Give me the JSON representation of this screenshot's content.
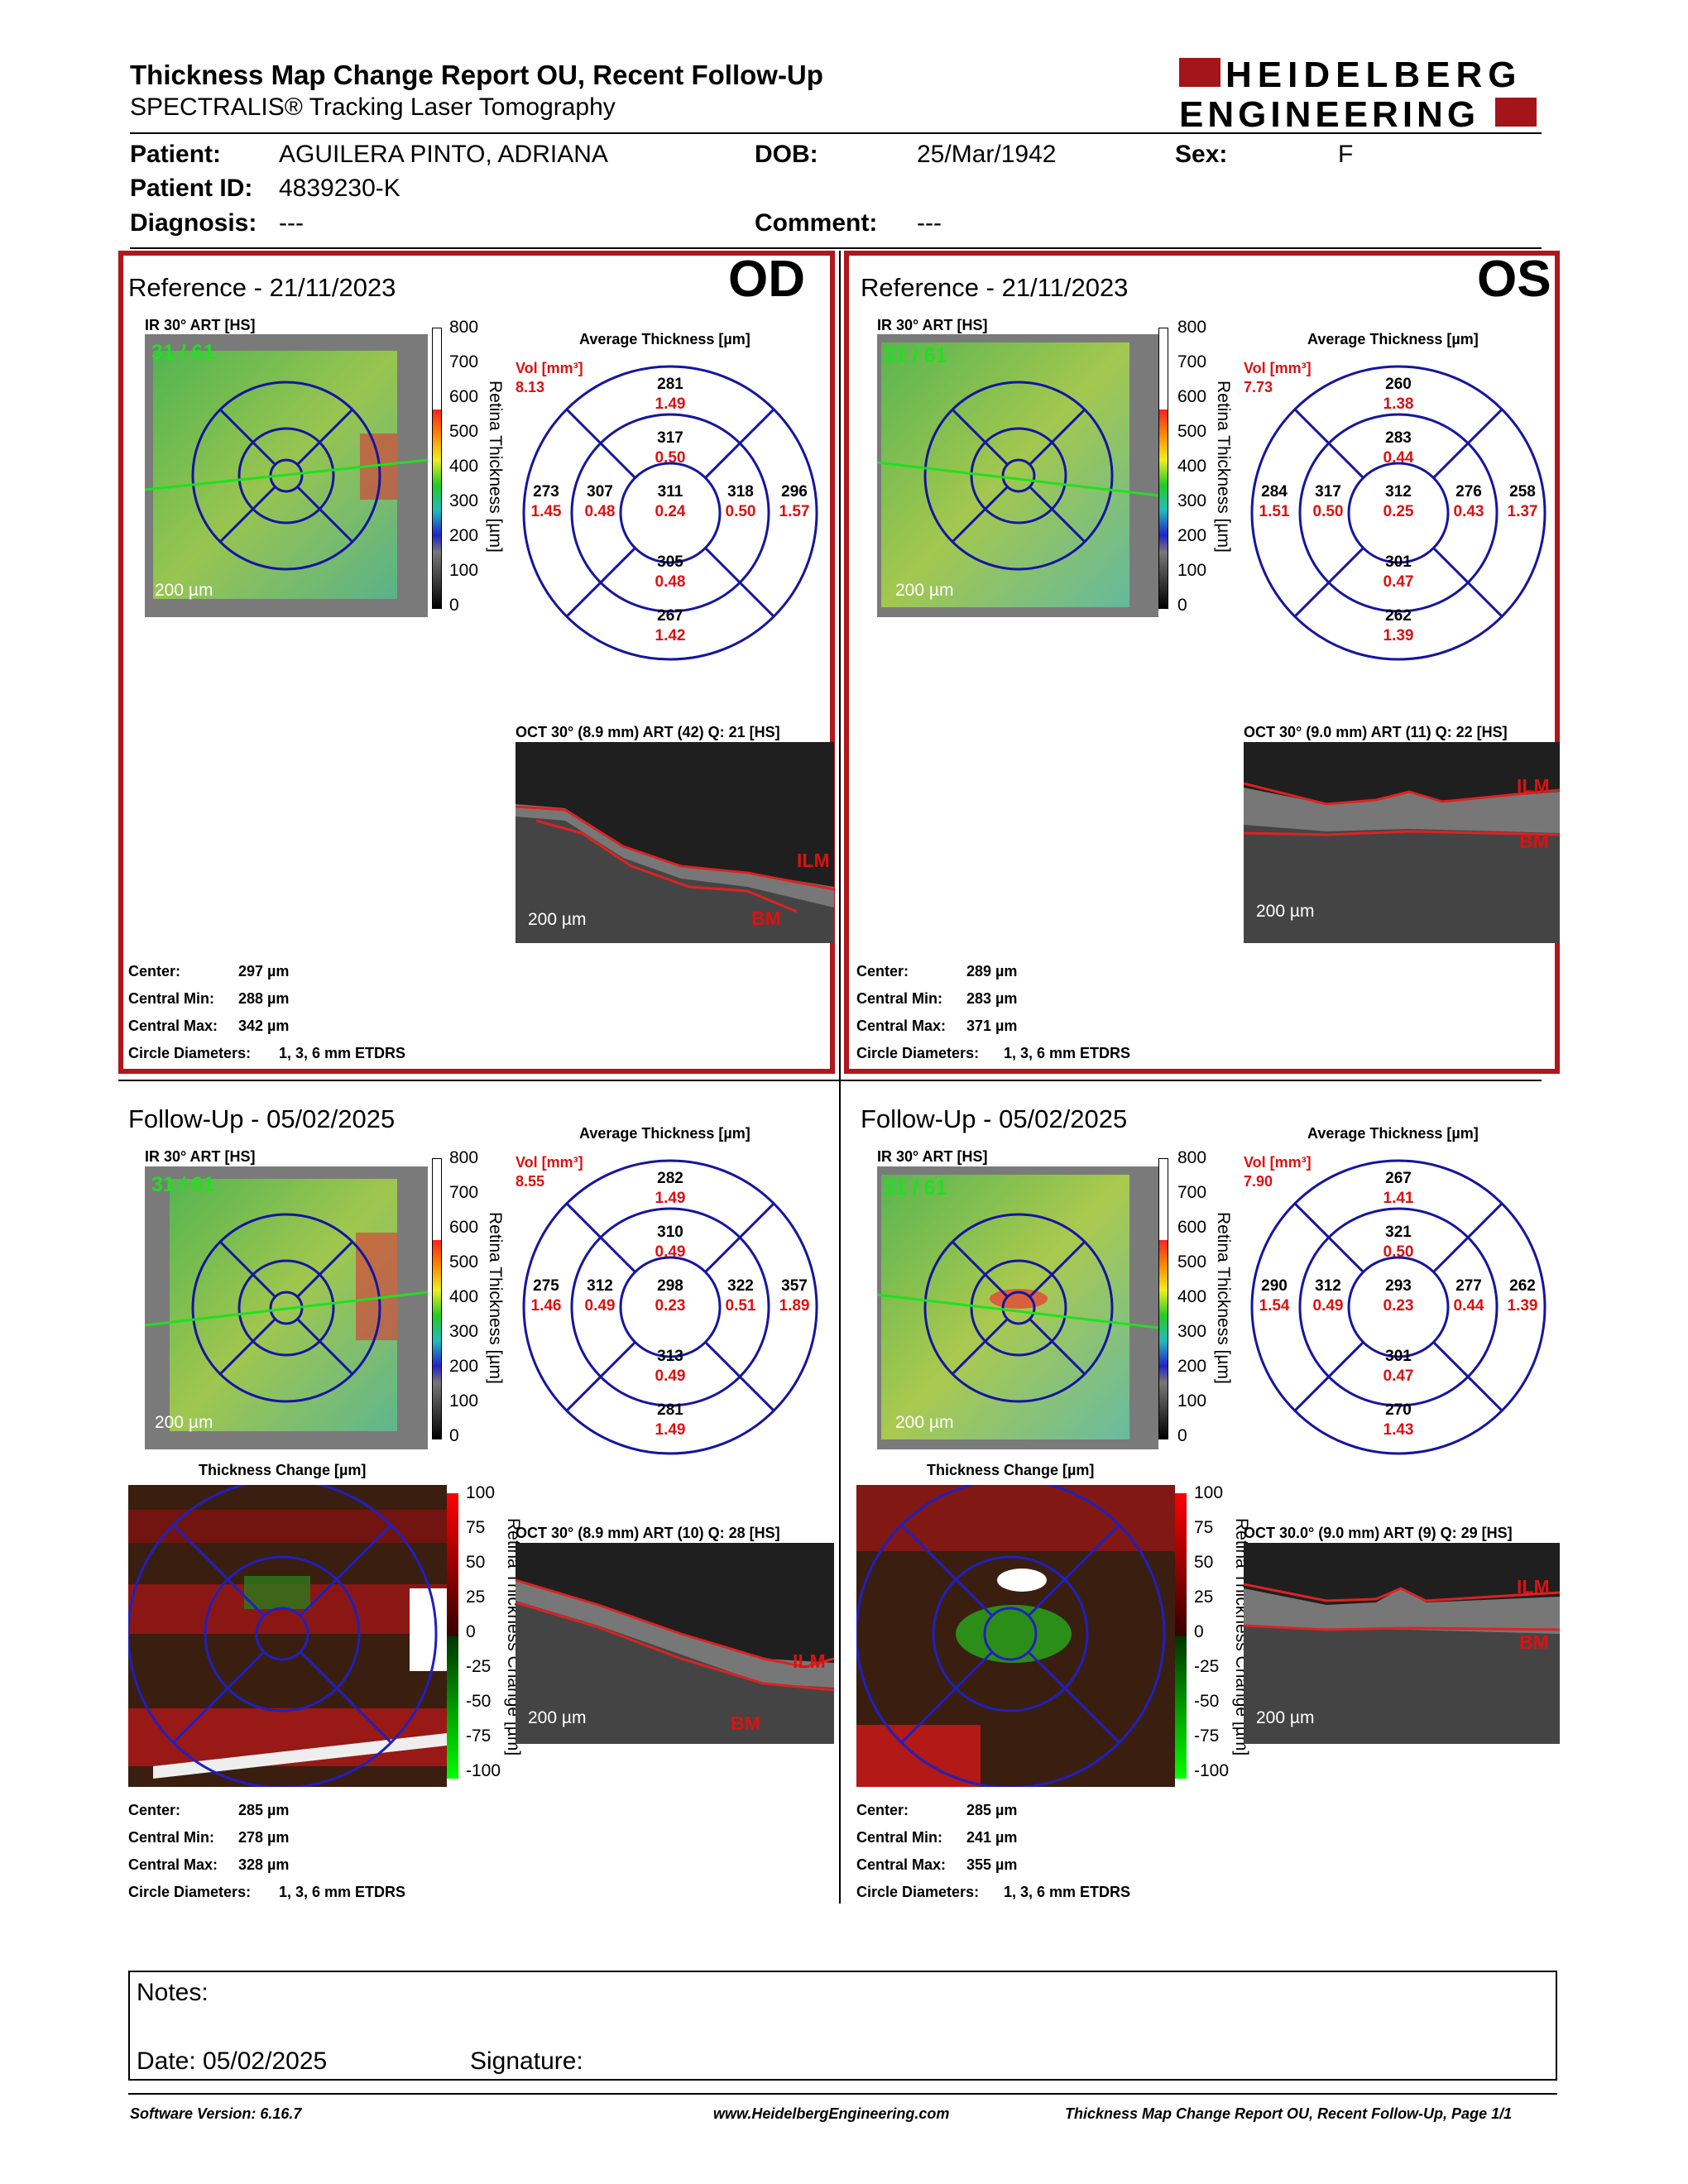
{
  "header": {
    "title": "Thickness Map Change Report OU, Recent Follow-Up",
    "subtitle": "SPECTRALIS® Tracking Laser Tomography",
    "logo_line1": "HEIDELBERG",
    "logo_line2": "ENGINEERING"
  },
  "patient": {
    "patient_label": "Patient:",
    "patient_name": "AGUILERA PINTO, ADRIANA",
    "dob_label": "DOB:",
    "dob": "25/Mar/1942",
    "sex_label": "Sex:",
    "sex": "F",
    "id_label": "Patient ID:",
    "id": "4839230-K",
    "diagnosis_label": "Diagnosis:",
    "diagnosis": "---",
    "comment_label": "Comment:",
    "comment": "---"
  },
  "common": {
    "ir_label": "IR 30° ART [HS]",
    "avg_label": "Average Thickness [µm]",
    "vol_label": "Vol [mm³]",
    "scale_bar": "200 µm",
    "retina_axis": "Retina Thickness [µm]",
    "change_axis": "Retina Thickness Change [µm]",
    "thickness_change": "Thickness Change [µm]",
    "retina_ticks": [
      "800",
      "700",
      "600",
      "500",
      "400",
      "300",
      "200",
      "100",
      "0"
    ],
    "change_ticks": [
      "100",
      "75",
      "50",
      "25",
      "0",
      "-25",
      "-50",
      "-75",
      "-100"
    ],
    "center_label": "Center:",
    "cmin_label": "Central Min:",
    "cmax_label": "Central Max:",
    "circle_label": "Circle Diameters:",
    "circle_value": "1, 3, 6 mm ETDRS",
    "ilm": "ILM",
    "bm": "BM"
  },
  "od_ref": {
    "title": "Reference - 21/11/2023",
    "eye": "OD",
    "counter": "31 / 61",
    "vol": "8.13",
    "oct_label": "OCT 30° (8.9 mm) ART (42) Q: 21 [HS]",
    "grid": [
      [
        "281",
        "1.49"
      ],
      [
        "317",
        "0.50"
      ],
      [
        "273",
        "1.45"
      ],
      [
        "307",
        "0.48"
      ],
      [
        "311",
        "0.24"
      ],
      [
        "318",
        "0.50"
      ],
      [
        "296",
        "1.57"
      ],
      [
        "305",
        "0.48"
      ],
      [
        "267",
        "1.42"
      ]
    ],
    "center": "297 µm",
    "cmin": "288 µm",
    "cmax": "342 µm"
  },
  "os_ref": {
    "title": "Reference - 21/11/2023",
    "eye": "OS",
    "counter": "31 / 61",
    "vol": "7.73",
    "oct_label": "OCT 30° (9.0 mm) ART (11) Q: 22 [HS]",
    "grid": [
      [
        "260",
        "1.38"
      ],
      [
        "283",
        "0.44"
      ],
      [
        "284",
        "1.51"
      ],
      [
        "317",
        "0.50"
      ],
      [
        "312",
        "0.25"
      ],
      [
        "276",
        "0.43"
      ],
      [
        "258",
        "1.37"
      ],
      [
        "301",
        "0.47"
      ],
      [
        "262",
        "1.39"
      ]
    ],
    "center": "289 µm",
    "cmin": "283 µm",
    "cmax": "371 µm"
  },
  "od_fu": {
    "title": "Follow-Up - 05/02/2025",
    "counter": "31 / 61",
    "vol": "8.55",
    "oct_label": "OCT 30° (8.9 mm) ART (10) Q: 28 [HS]",
    "grid": [
      [
        "282",
        "1.49"
      ],
      [
        "310",
        "0.49"
      ],
      [
        "275",
        "1.46"
      ],
      [
        "312",
        "0.49"
      ],
      [
        "298",
        "0.23"
      ],
      [
        "322",
        "0.51"
      ],
      [
        "357",
        "1.89"
      ],
      [
        "313",
        "0.49"
      ],
      [
        "281",
        "1.49"
      ]
    ],
    "center": "285 µm",
    "cmin": "278 µm",
    "cmax": "328 µm"
  },
  "os_fu": {
    "title": "Follow-Up - 05/02/2025",
    "counter": "31 / 61",
    "vol": "7.90",
    "oct_label": "OCT 30.0° (9.0 mm) ART (9) Q: 29 [HS]",
    "grid": [
      [
        "267",
        "1.41"
      ],
      [
        "321",
        "0.50"
      ],
      [
        "290",
        "1.54"
      ],
      [
        "312",
        "0.49"
      ],
      [
        "293",
        "0.23"
      ],
      [
        "277",
        "0.44"
      ],
      [
        "262",
        "1.39"
      ],
      [
        "301",
        "0.47"
      ],
      [
        "270",
        "1.43"
      ]
    ],
    "center": "285 µm",
    "cmin": "241 µm",
    "cmax": "355 µm"
  },
  "notes": {
    "notes_label": "Notes:",
    "date_label": "Date: 05/02/2025",
    "signature_label": "Signature:"
  },
  "footer": {
    "software": "Software Version: 6.16.7",
    "website": "www.HeidelbergEngineering.com",
    "page": "Thickness Map Change Report OU, Recent Follow-Up, Page 1/1"
  }
}
